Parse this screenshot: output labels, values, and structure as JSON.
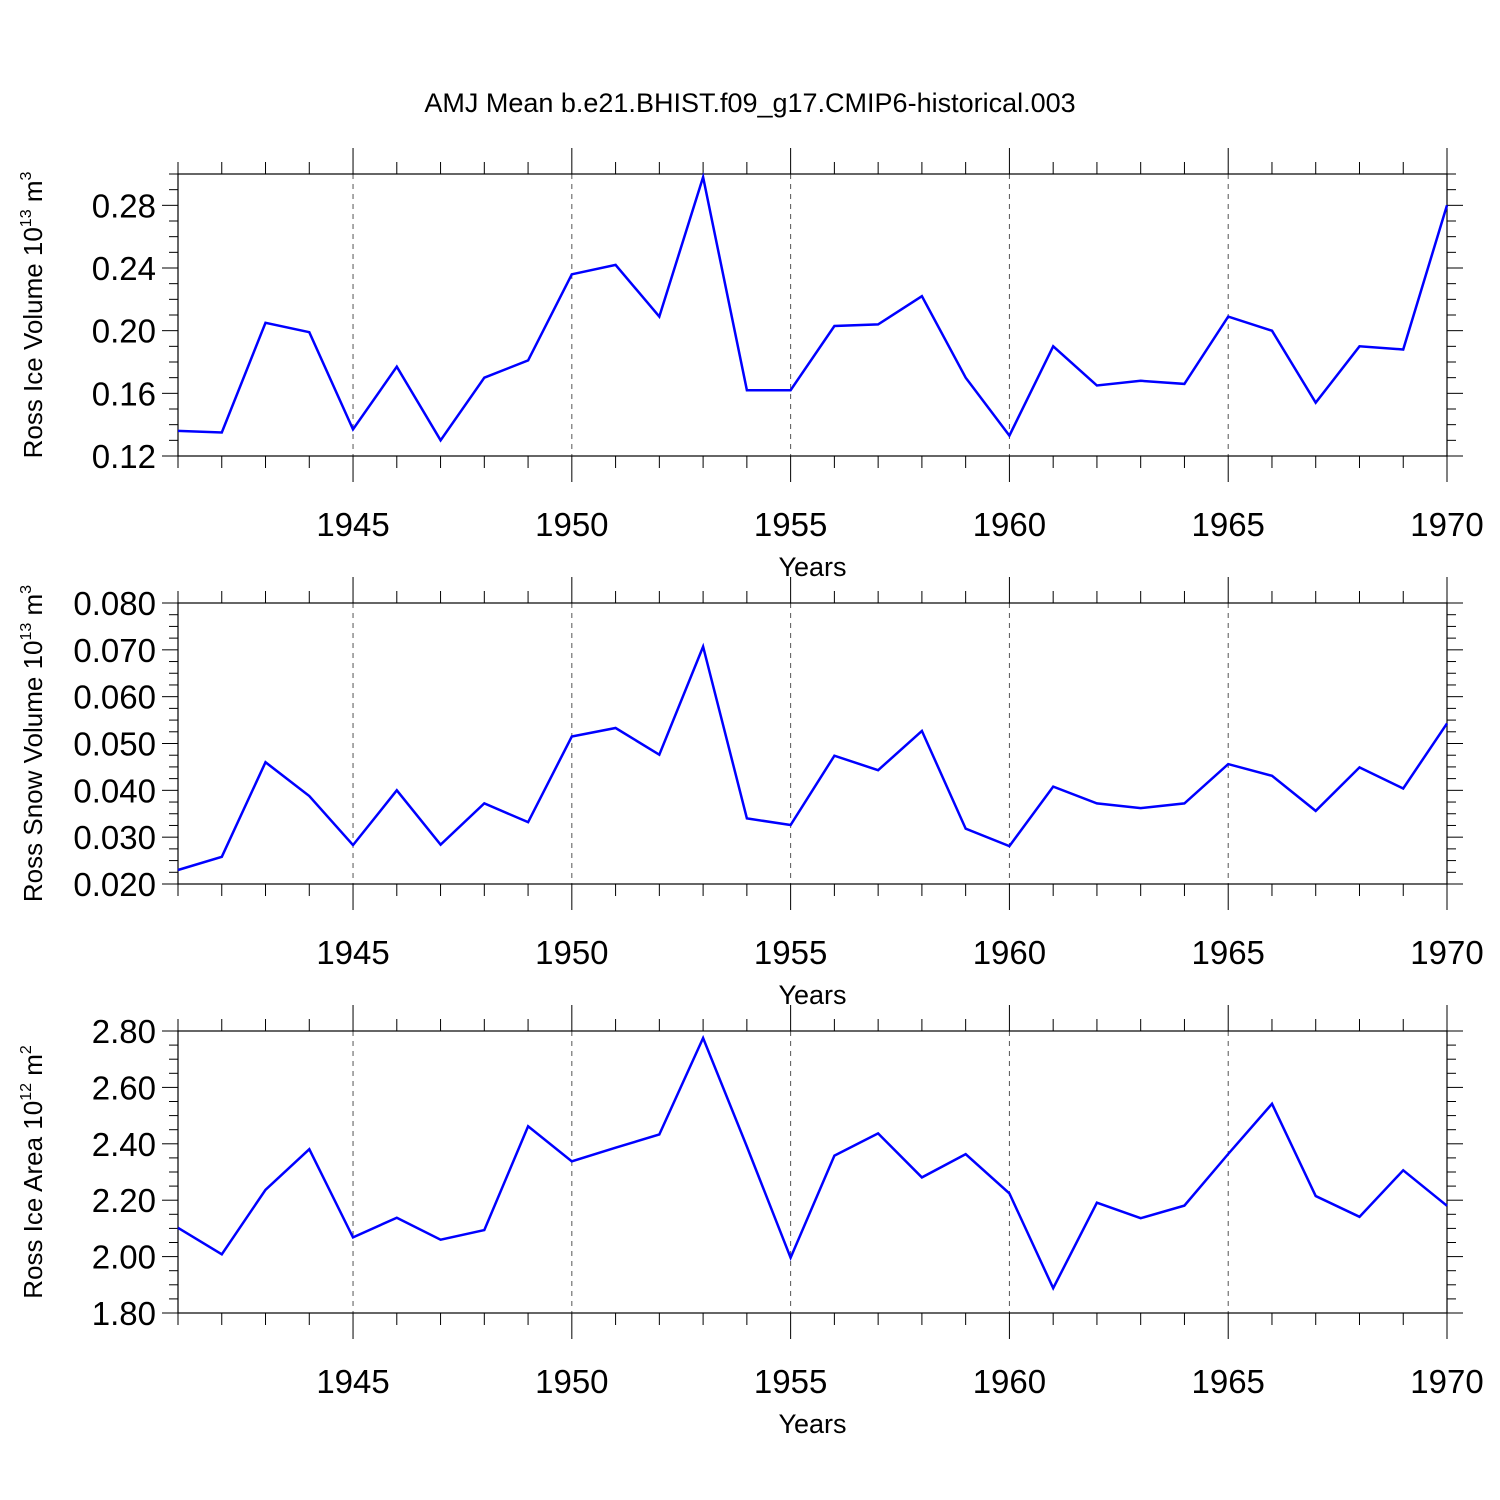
{
  "figure_title": "AMJ Mean b.e21.BHIST.f09_g17.CMIP6-historical.003",
  "line_color": "#0000ff",
  "chart_data": [
    {
      "type": "line",
      "title": "",
      "xlabel": "Years",
      "ylabel": {
        "text": "Ross Ice Volume 10",
        "exp": "13",
        "unit": " m",
        "unit_exp": "3"
      },
      "xlim": [
        1941,
        1970
      ],
      "ylim": [
        0.12,
        0.3
      ],
      "x_major_ticks": [
        1945,
        1950,
        1955,
        1960,
        1965,
        1970
      ],
      "x_tick_labels": [
        "1945",
        "1950",
        "1955",
        "1960",
        "1965",
        "1970"
      ],
      "y_ticks": [
        0.12,
        0.16,
        0.2,
        0.24,
        0.28
      ],
      "y_tick_labels": [
        "0.12",
        "0.16",
        "0.20",
        "0.24",
        "0.28"
      ],
      "x": [
        1941,
        1942,
        1943,
        1944,
        1945,
        1946,
        1947,
        1948,
        1949,
        1950,
        1951,
        1952,
        1953,
        1954,
        1955,
        1956,
        1957,
        1958,
        1959,
        1960,
        1961,
        1962,
        1963,
        1964,
        1965,
        1966,
        1967,
        1968,
        1969,
        1970
      ],
      "series": [
        {
          "name": "Ross Ice Volume",
          "values": [
            0.136,
            0.135,
            0.205,
            0.199,
            0.137,
            0.177,
            0.13,
            0.17,
            0.181,
            0.236,
            0.242,
            0.209,
            0.298,
            0.162,
            0.162,
            0.203,
            0.204,
            0.222,
            0.17,
            0.133,
            0.19,
            0.165,
            0.168,
            0.166,
            0.209,
            0.2,
            0.154,
            0.19,
            0.188,
            0.28
          ]
        }
      ]
    },
    {
      "type": "line",
      "title": "",
      "xlabel": "Years",
      "ylabel": {
        "text": "Ross Snow Volume 10",
        "exp": "13",
        "unit": " m",
        "unit_exp": "3"
      },
      "xlim": [
        1941,
        1970
      ],
      "ylim": [
        0.02,
        0.08
      ],
      "x_major_ticks": [
        1945,
        1950,
        1955,
        1960,
        1965,
        1970
      ],
      "x_tick_labels": [
        "1945",
        "1950",
        "1955",
        "1960",
        "1965",
        "1970"
      ],
      "y_ticks": [
        0.02,
        0.03,
        0.04,
        0.05,
        0.06,
        0.07,
        0.08
      ],
      "y_tick_labels": [
        "0.020",
        "0.030",
        "0.040",
        "0.050",
        "0.060",
        "0.070",
        "0.080"
      ],
      "x": [
        1941,
        1942,
        1943,
        1944,
        1945,
        1946,
        1947,
        1948,
        1949,
        1950,
        1951,
        1952,
        1953,
        1954,
        1955,
        1956,
        1957,
        1958,
        1959,
        1960,
        1961,
        1962,
        1963,
        1964,
        1965,
        1966,
        1967,
        1968,
        1969,
        1970
      ],
      "series": [
        {
          "name": "Ross Snow Volume",
          "values": [
            0.023,
            0.0258,
            0.046,
            0.0388,
            0.0283,
            0.04,
            0.0284,
            0.0372,
            0.0332,
            0.0515,
            0.0533,
            0.0476,
            0.0707,
            0.034,
            0.0326,
            0.0474,
            0.0443,
            0.0527,
            0.0318,
            0.0281,
            0.0408,
            0.0372,
            0.0362,
            0.0372,
            0.0456,
            0.0431,
            0.0356,
            0.0449,
            0.0404,
            0.0543
          ]
        }
      ]
    },
    {
      "type": "line",
      "title": "",
      "xlabel": "Years",
      "ylabel": {
        "text": "Ross Ice Area 10",
        "exp": "12",
        "unit": " m",
        "unit_exp": "2"
      },
      "xlim": [
        1941,
        1970
      ],
      "ylim": [
        1.8,
        2.8
      ],
      "x_major_ticks": [
        1945,
        1950,
        1955,
        1960,
        1965,
        1970
      ],
      "x_tick_labels": [
        "1945",
        "1950",
        "1955",
        "1960",
        "1965",
        "1970"
      ],
      "y_ticks": [
        1.8,
        2.0,
        2.2,
        2.4,
        2.6,
        2.8
      ],
      "y_tick_labels": [
        "1.80",
        "2.00",
        "2.20",
        "2.40",
        "2.60",
        "2.80"
      ],
      "x": [
        1941,
        1942,
        1943,
        1944,
        1945,
        1946,
        1947,
        1948,
        1949,
        1950,
        1951,
        1952,
        1953,
        1954,
        1955,
        1956,
        1957,
        1958,
        1959,
        1960,
        1961,
        1962,
        1963,
        1964,
        1965,
        1966,
        1967,
        1968,
        1969,
        1970
      ],
      "series": [
        {
          "name": "Ross Ice Area",
          "values": [
            2.102,
            2.008,
            2.237,
            2.381,
            2.068,
            2.138,
            2.06,
            2.094,
            2.462,
            2.338,
            2.386,
            2.433,
            2.775,
            2.39,
            1.996,
            2.358,
            2.437,
            2.281,
            2.363,
            2.224,
            1.888,
            2.191,
            2.136,
            2.181,
            2.364,
            2.542,
            2.215,
            2.141,
            2.306,
            2.18
          ]
        }
      ]
    }
  ]
}
